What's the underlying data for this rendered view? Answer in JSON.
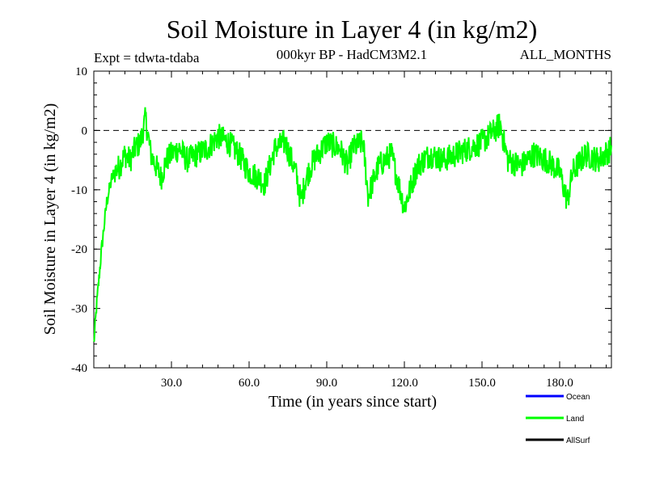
{
  "chart_data": {
    "type": "line",
    "title": "Soil Moisture in Layer 4 (in kg/m2)",
    "subtitle": "000kyr BP - HadCM3M2.1",
    "experiment": "Expt = tdwta-tdaba",
    "months": "ALL_MONTHS",
    "xlabel": "Time (in years since start)",
    "ylabel": "Soil Moisture in Layer 4 (in kg/m2)",
    "xlim": [
      0,
      200
    ],
    "ylim": [
      -40,
      10
    ],
    "x_ticks": [
      30,
      60,
      90,
      120,
      150,
      180
    ],
    "x_tick_labels": [
      "30.0",
      "60.0",
      "90.0",
      "120.0",
      "150.0",
      "180.0"
    ],
    "y_ticks": [
      -40,
      -30,
      -20,
      -10,
      0,
      10
    ],
    "y_tick_labels": [
      "-40",
      "-30",
      "-20",
      "-10",
      "0",
      "10"
    ],
    "reference_line": {
      "y": 0,
      "style": "dashed"
    },
    "legend": [
      {
        "name": "Ocean",
        "color": "#0000ff"
      },
      {
        "name": "Land",
        "color": "#00ff00"
      },
      {
        "name": "AllSurf",
        "color": "#000000"
      }
    ],
    "series": [
      {
        "name": "Land",
        "color": "#00ff00",
        "x": [
          0,
          1,
          2,
          3,
          4,
          5,
          6,
          7,
          8,
          10,
          12,
          14,
          16,
          18,
          20,
          22,
          24,
          26,
          28,
          30,
          33,
          36,
          40,
          44,
          48,
          52,
          56,
          60,
          64,
          66,
          70,
          74,
          78,
          80,
          82,
          85,
          90,
          95,
          98,
          100,
          104,
          106,
          110,
          115,
          120,
          125,
          130,
          135,
          140,
          145,
          150,
          155,
          157,
          160,
          165,
          170,
          175,
          180,
          183,
          185,
          190,
          195,
          200
        ],
        "y": [
          -36,
          -30,
          -25,
          -20,
          -16,
          -12,
          -10,
          -8,
          -7,
          -6,
          -4,
          -5,
          -3,
          -2,
          2,
          -4,
          -6,
          -8,
          -5,
          -4,
          -3,
          -5,
          -4,
          -3,
          -1,
          -2,
          -4,
          -7,
          -8,
          -9,
          -3,
          -2,
          -7,
          -12,
          -8,
          -5,
          -2,
          -3,
          -6,
          -3,
          -2,
          -11,
          -6,
          -4,
          -13,
          -6,
          -4,
          -5,
          -4,
          -3,
          -2,
          0,
          1,
          -5,
          -6,
          -4,
          -5,
          -7,
          -12,
          -7,
          -4,
          -5,
          -3
        ]
      }
    ]
  }
}
